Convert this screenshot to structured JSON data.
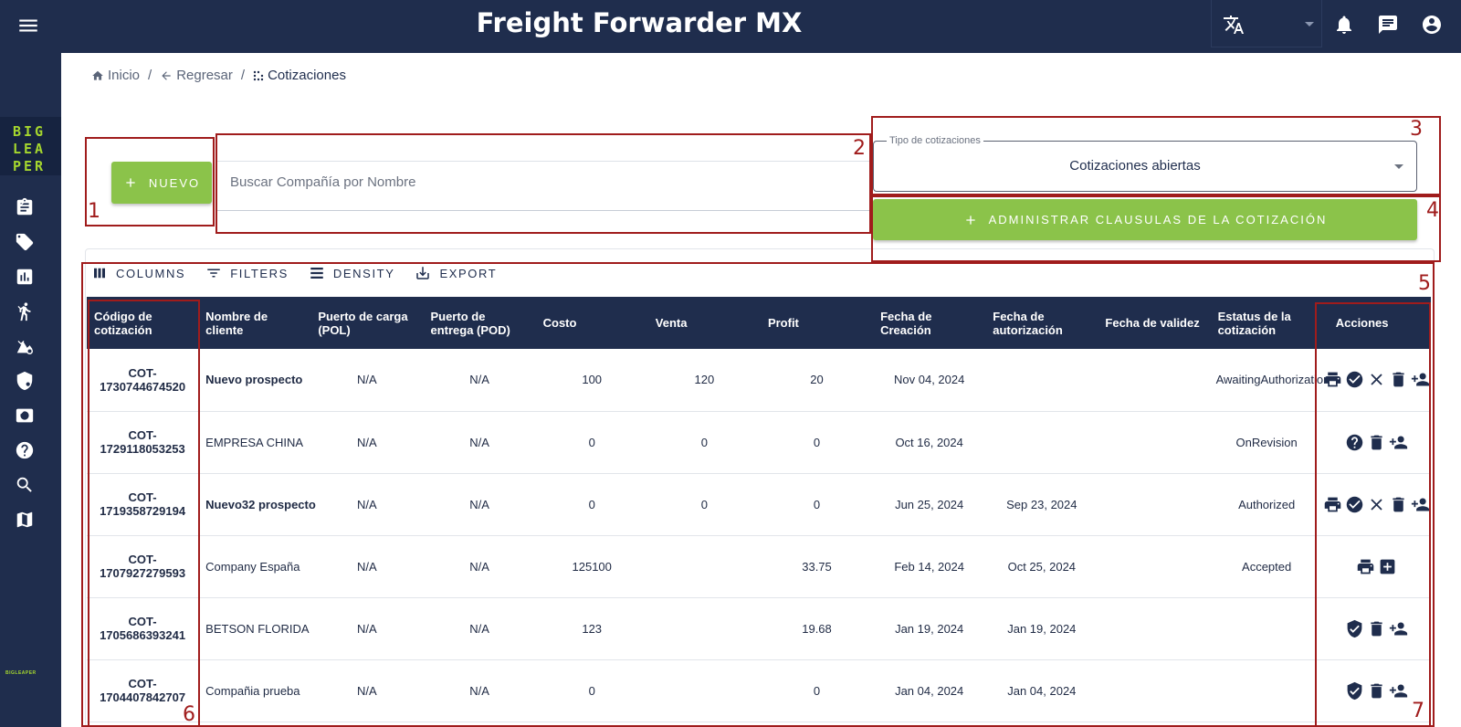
{
  "app": {
    "title": "Freight Forwarder MX"
  },
  "logo": {
    "line1": "BIG",
    "line2": "LEA",
    "line3": "PER",
    "small_brand": "BIGLEAPER"
  },
  "breadcrumb": {
    "home": "Inicio",
    "back": "Regresar",
    "current": "Cotizaciones",
    "separator": "/"
  },
  "actions": {
    "new_button": "NUEVO",
    "manage_clauses_button": "ADMINISTRAR CLAUSULAS DE LA COTIZACIÓN"
  },
  "search": {
    "placeholder": "Buscar Compañía por Nombre",
    "value": ""
  },
  "quote_type": {
    "label": "Tipo de cotizaciones",
    "value": "Cotizaciones abiertas"
  },
  "toolbar": {
    "columns": "COLUMNS",
    "filters": "FILTERS",
    "density": "DENSITY",
    "export": "EXPORT"
  },
  "annotations": [
    "1",
    "2",
    "3",
    "4",
    "5",
    "6",
    "7"
  ],
  "table": {
    "headers": [
      "Código de cotización",
      "Nombre de cliente",
      "Puerto de carga (POL)",
      "Puerto de entrega (POD)",
      "Costo",
      "Venta",
      "Profit",
      "Fecha de Creación",
      "Fecha de autorización",
      "Fecha de validez",
      "Estatus de la cotización",
      "Acciones"
    ],
    "rows": [
      {
        "code": "COT-1730744674520",
        "client": "Nuevo prospecto",
        "client_bold": true,
        "pol": "N/A",
        "pod": "N/A",
        "cost": "100",
        "sale": "120",
        "profit": "20",
        "created": "Nov 04, 2024",
        "authorized": "",
        "validity": "",
        "status": "AwaitingAuthorization",
        "actions": [
          "print-icon",
          "check-circle-icon",
          "close-icon",
          "delete-icon",
          "person-add-icon"
        ]
      },
      {
        "code": "COT-1729118053253",
        "client": "EMPRESA CHINA",
        "client_bold": false,
        "pol": "N/A",
        "pod": "N/A",
        "cost": "0",
        "sale": "0",
        "profit": "0",
        "created": "Oct 16, 2024",
        "authorized": "",
        "validity": "",
        "status": "OnRevision",
        "actions": [
          "help-icon",
          "delete-icon",
          "person-add-icon"
        ]
      },
      {
        "code": "COT-1719358729194",
        "client": "Nuevo32 prospecto",
        "client_bold": true,
        "pol": "N/A",
        "pod": "N/A",
        "cost": "0",
        "sale": "0",
        "profit": "0",
        "created": "Jun 25, 2024",
        "authorized": "Sep 23, 2024",
        "validity": "",
        "status": "Authorized",
        "actions": [
          "print-icon",
          "check-circle-icon",
          "close-icon",
          "delete-icon",
          "person-add-icon"
        ]
      },
      {
        "code": "COT-1707927279593",
        "client": "Company España",
        "client_bold": false,
        "pol": "N/A",
        "pod": "N/A",
        "cost": "125100",
        "sale": "",
        "profit": "33.75",
        "created": "Feb 14, 2024",
        "authorized": "Oct 25, 2024",
        "validity": "",
        "status": "Accepted",
        "actions": [
          "print-icon",
          "add-box-icon"
        ]
      },
      {
        "code": "COT-1705686393241",
        "client": "BETSON FLORIDA",
        "client_bold": false,
        "pol": "N/A",
        "pod": "N/A",
        "cost": "123",
        "sale": "",
        "profit": "19.68",
        "created": "Jan 19, 2024",
        "authorized": "Jan 19, 2024",
        "validity": "",
        "status": "",
        "actions": [
          "verified-icon",
          "delete-icon",
          "person-add-icon"
        ]
      },
      {
        "code": "COT-1704407842707",
        "client": "Compañia prueba",
        "client_bold": false,
        "pol": "N/A",
        "pod": "N/A",
        "cost": "0",
        "sale": "",
        "profit": "0",
        "created": "Jan 04, 2024",
        "authorized": "Jan 04, 2024",
        "validity": "",
        "status": "",
        "actions": [
          "verified-icon",
          "delete-icon",
          "person-add-icon"
        ]
      }
    ]
  },
  "colors": {
    "navy": "#1f2d4d",
    "green": "#8bc34a",
    "annotation_red": "#a01c1c",
    "logo_green": "#a5d62e"
  }
}
